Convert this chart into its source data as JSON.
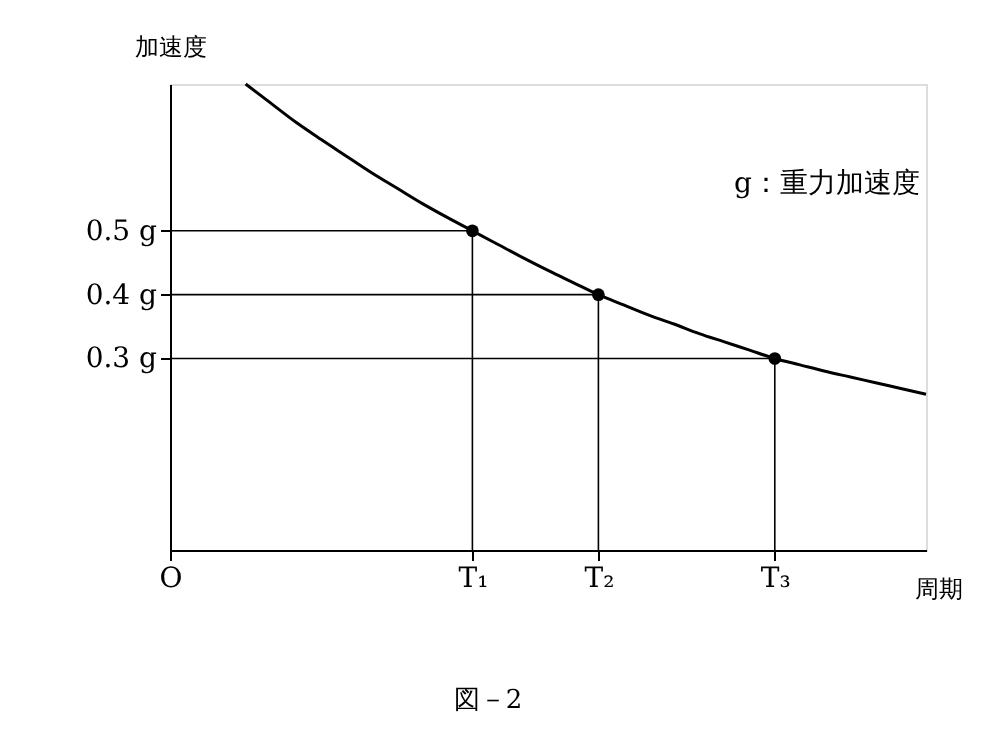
{
  "chart_data": {
    "type": "line",
    "ylabel": "加速度",
    "xlabel": "周期",
    "annotations": [
      "g：重力加速度",
      "図－2"
    ],
    "categories": [
      "O",
      null,
      null,
      null,
      null,
      null,
      null,
      null,
      null,
      null,
      null,
      null,
      "T₁",
      null,
      null,
      null,
      null,
      "T₂",
      null,
      null,
      null,
      null,
      null,
      null,
      "T₃",
      null,
      null,
      null,
      null,
      null,
      null
    ],
    "ylim": [
      0,
      0.73
    ],
    "yticks": [
      {
        "value": 0.3,
        "label": "0.3 g"
      },
      {
        "value": 0.4,
        "label": "0.4 g"
      },
      {
        "value": 0.5,
        "label": "0.5 g"
      }
    ],
    "grid": false,
    "ref_lines": [
      {
        "axis": "y",
        "value": 0.5
      },
      {
        "axis": "y",
        "value": 0.4
      },
      {
        "axis": "y",
        "value": 0.3
      }
    ],
    "series": [
      {
        "color": "#000000",
        "marker": "none",
        "values": [
          null,
          null,
          null,
          0.73,
          0.7,
          0.67,
          0.643,
          0.617,
          0.591,
          0.567,
          0.543,
          0.521,
          0.5,
          0.479,
          0.458,
          0.438,
          0.419,
          0.4,
          0.384,
          0.368,
          0.354,
          0.339,
          0.326,
          0.313,
          0.3,
          0.29,
          0.28,
          0.271,
          0.262,
          0.253,
          0.244
        ]
      },
      {
        "type": "lollipop",
        "color": "#000000",
        "marker": "circle",
        "values": [
          null,
          null,
          null,
          null,
          null,
          null,
          null,
          null,
          null,
          null,
          null,
          null,
          0.5,
          null,
          null,
          null,
          null,
          0.4,
          null,
          null,
          null,
          null,
          null,
          null,
          0.3,
          null,
          null,
          null,
          null,
          null,
          null
        ]
      }
    ]
  }
}
